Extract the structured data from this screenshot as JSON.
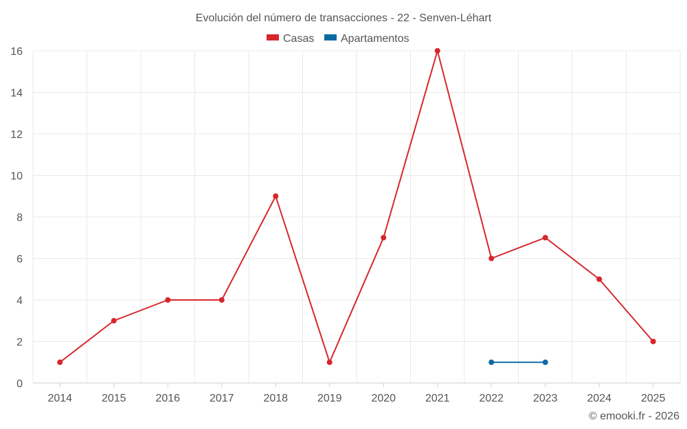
{
  "chart_data": {
    "type": "line",
    "title": "Evolución del número de transacciones - 22 - Senven-Léhart",
    "categories": [
      "2014",
      "2015",
      "2016",
      "2017",
      "2018",
      "2019",
      "2020",
      "2021",
      "2022",
      "2023",
      "2024",
      "2025"
    ],
    "ylim": [
      0,
      16
    ],
    "yticks": [
      0,
      2,
      4,
      6,
      8,
      10,
      12,
      14,
      16
    ],
    "xlabel": "",
    "ylabel": "",
    "grid": true,
    "legend_position": "top-center",
    "series": [
      {
        "name": "Casas",
        "color": "#d7262b",
        "values": [
          1,
          3,
          4,
          4,
          9,
          1,
          7,
          16,
          6,
          7,
          5,
          2
        ]
      },
      {
        "name": "Apartamentos",
        "color": "#0e6aa3",
        "values": [
          null,
          null,
          null,
          null,
          null,
          null,
          null,
          null,
          1,
          1,
          null,
          null
        ]
      }
    ]
  },
  "credit": "© emooki.fr - 2026"
}
